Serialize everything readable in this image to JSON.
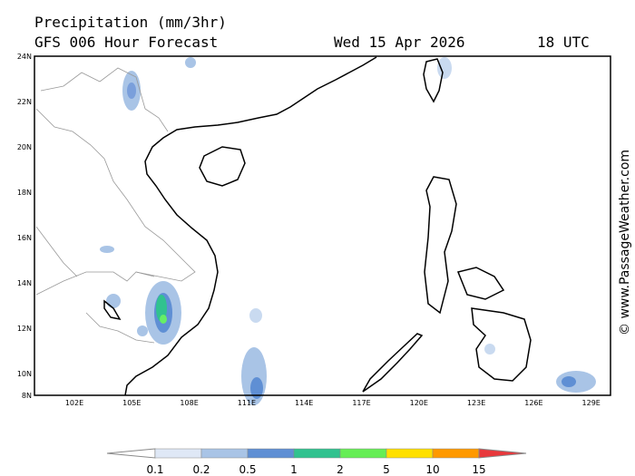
{
  "header": {
    "title": "Precipitation (mm/3hr)",
    "subtitle": "GFS 006 Hour Forecast",
    "date": "Wed 15 Apr 2026",
    "time": "18 UTC"
  },
  "map": {
    "lat_labels": [
      "24N",
      "22N",
      "20N",
      "18N",
      "16N",
      "14N",
      "12N",
      "10N",
      "8N"
    ],
    "lon_labels": [
      "102E",
      "105E",
      "108E",
      "111E",
      "114E",
      "117E",
      "120E",
      "123E",
      "126E",
      "129E"
    ]
  },
  "legend": {
    "labels": [
      "0.1",
      "0.2",
      "0.5",
      "1",
      "2",
      "5",
      "10",
      "15"
    ]
  },
  "watermark": "© www.PassageWeather.com"
}
